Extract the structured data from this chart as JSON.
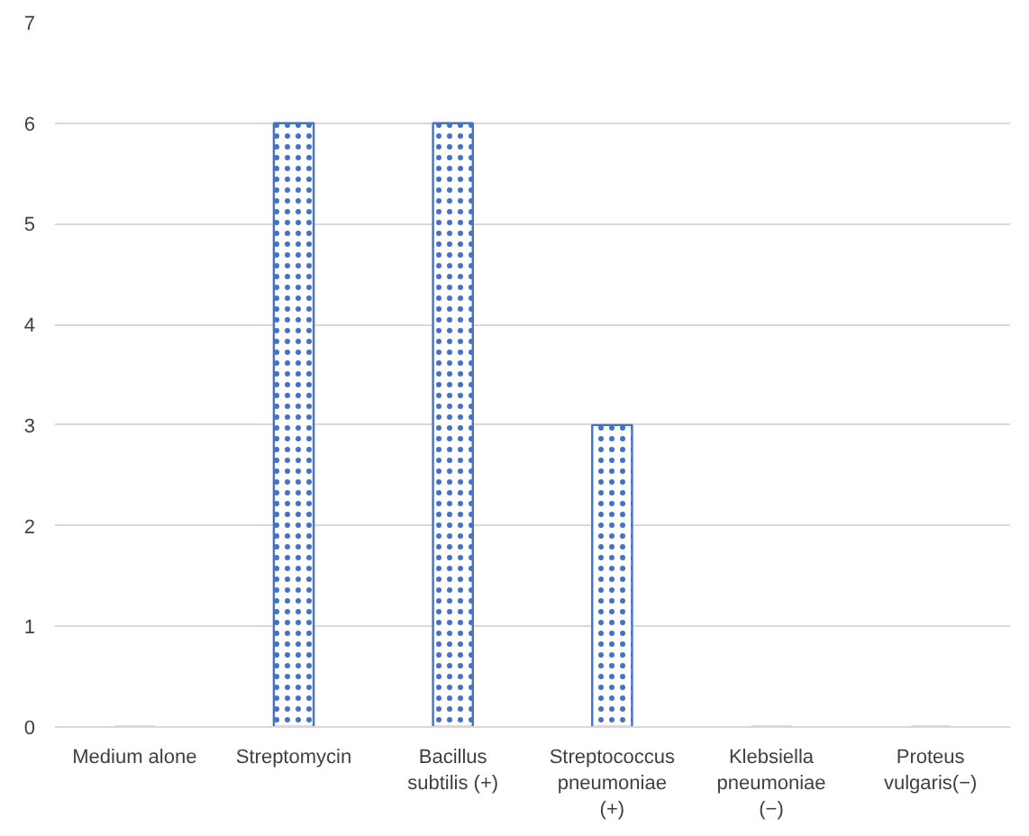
{
  "chart_data": {
    "type": "bar",
    "categories": [
      "Medium alone",
      "Streptomycin",
      "Bacillus subtilis (+)",
      "Streptococcus pneumoniae (+)",
      "Klebsiella pneumoniae (−)",
      "Proteus vulgaris(−)"
    ],
    "values": [
      0,
      6,
      6,
      3,
      0,
      0
    ],
    "color": "#4472c4",
    "ylim": [
      0,
      7
    ],
    "yticks": [
      0,
      1,
      2,
      3,
      4,
      5,
      6,
      7
    ],
    "grid": "y"
  }
}
